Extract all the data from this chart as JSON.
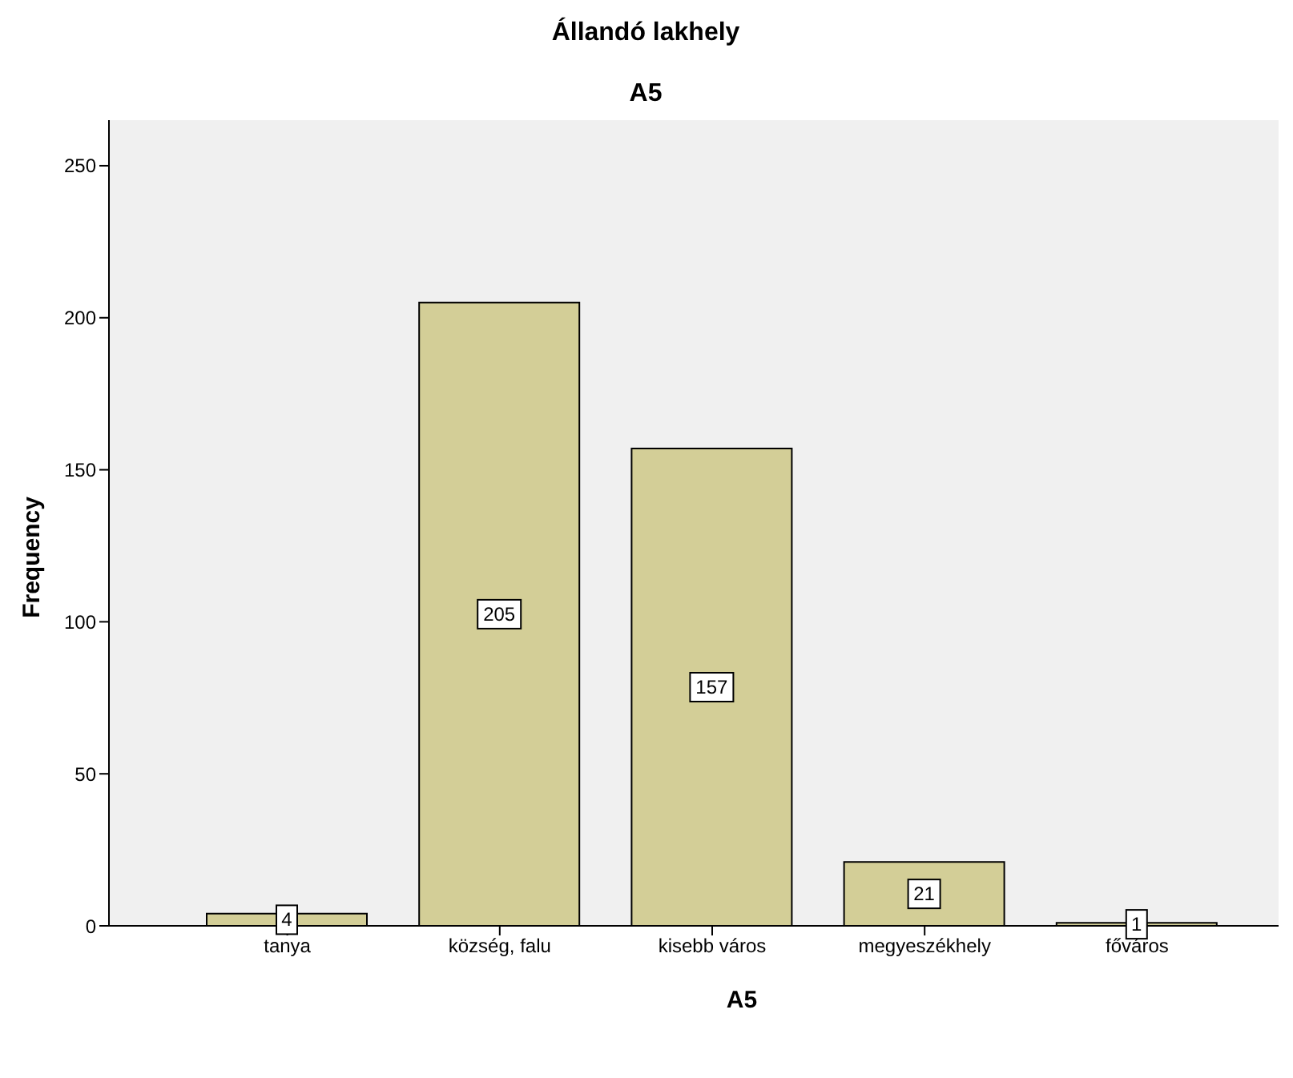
{
  "chart_data": {
    "type": "bar",
    "title": "Állandó lakhely",
    "subtitle": "A5",
    "xlabel": "A5",
    "ylabel": "Frequency",
    "categories": [
      "tanya",
      "község, falu",
      "kisebb város",
      "megyeszékhely",
      "főváros"
    ],
    "values": [
      4,
      205,
      157,
      21,
      1
    ],
    "color": "#d3ce97",
    "ylim": [
      0,
      265
    ],
    "yticks": [
      0,
      50,
      100,
      150,
      200,
      250
    ],
    "grid": false,
    "data_labels": true
  }
}
